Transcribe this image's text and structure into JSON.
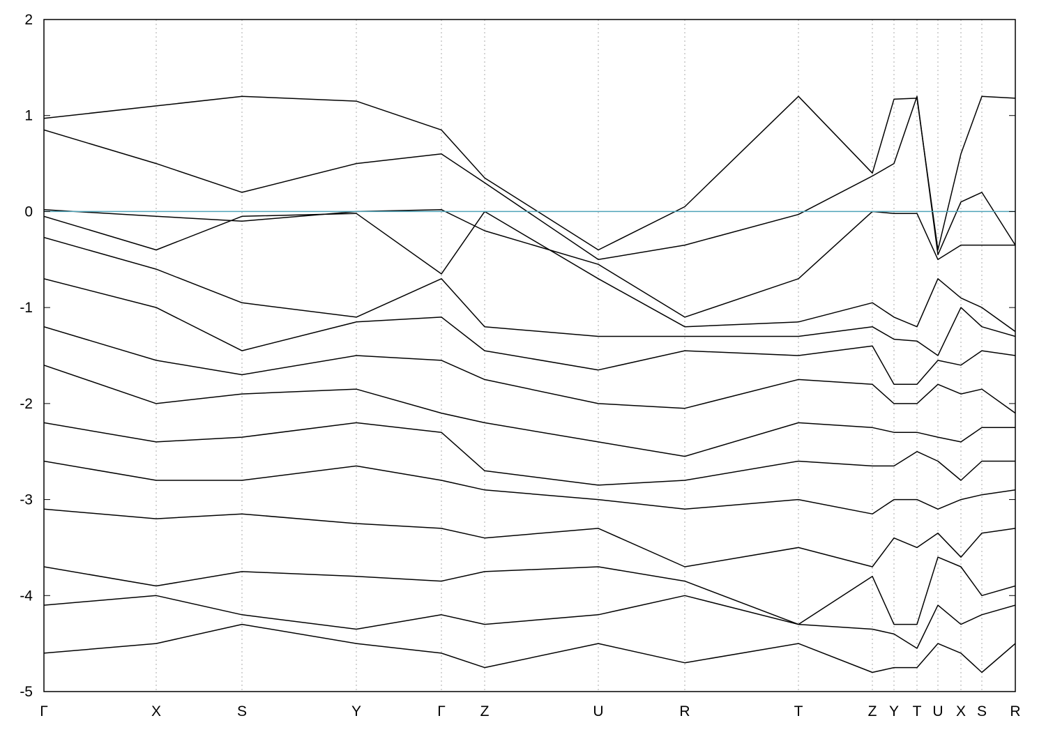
{
  "chart_data": {
    "type": "line",
    "x": [
      0,
      161,
      284,
      448,
      570,
      632,
      795,
      919,
      1082,
      1188,
      1219,
      1252,
      1282,
      1315,
      1345,
      1393
    ],
    "xlim": [
      0,
      1393
    ],
    "xticks": [
      {
        "value": 0,
        "label": "Γ"
      },
      {
        "value": 161,
        "label": "X"
      },
      {
        "value": 284,
        "label": "S"
      },
      {
        "value": 448,
        "label": "Y"
      },
      {
        "value": 570,
        "label": "Γ"
      },
      {
        "value": 632,
        "label": "Z"
      },
      {
        "value": 795,
        "label": "U"
      },
      {
        "value": 919,
        "label": "R"
      },
      {
        "value": 1082,
        "label": "T"
      },
      {
        "value": 1188,
        "label": "Z"
      },
      {
        "value": 1219,
        "label": "Y"
      },
      {
        "value": 1252,
        "label": "T"
      },
      {
        "value": 1282,
        "label": "U"
      },
      {
        "value": 1315,
        "label": "X"
      },
      {
        "value": 1345,
        "label": "S"
      },
      {
        "value": 1393,
        "label": "R"
      }
    ],
    "ylim": [
      -5,
      2
    ],
    "yticks": [
      -5,
      -4,
      -3,
      -2,
      -1,
      0,
      1,
      2
    ],
    "grid": true,
    "color": "#000000",
    "fermi_level": {
      "value": 0,
      "color": "#4fa3b8"
    },
    "series": [
      {
        "values": [
          0.97,
          1.1,
          1.2,
          1.15,
          0.85,
          0.35,
          -0.4,
          0.05,
          1.2,
          0.4,
          1.17,
          1.18,
          -0.4,
          0.6,
          1.2,
          1.18
        ]
      },
      {
        "values": [
          0.85,
          0.5,
          0.2,
          0.5,
          0.6,
          0.3,
          -0.5,
          -0.35,
          -0.03,
          0.37,
          0.5,
          1.2,
          -0.45,
          0.1,
          0.2,
          -0.35
        ]
      },
      {
        "values": [
          0.02,
          -0.05,
          -0.1,
          0.0,
          0.02,
          -0.2,
          -0.55,
          -1.1,
          -0.7,
          0.0,
          -0.02,
          -0.02,
          -0.5,
          -0.35,
          -0.35,
          -0.35
        ]
      },
      {
        "values": [
          -0.05,
          -0.4,
          -0.05,
          -0.02,
          -0.65,
          0.0,
          -0.7,
          -1.2,
          -1.15,
          -0.95,
          -1.1,
          -1.2,
          -0.7,
          -0.9,
          -1.0,
          -1.25
        ]
      },
      {
        "values": [
          -0.27,
          -0.6,
          -0.95,
          -1.1,
          -0.7,
          -1.2,
          -1.3,
          -1.3,
          -1.3,
          -1.2,
          -1.33,
          -1.35,
          -1.5,
          -1.0,
          -1.2,
          -1.3
        ]
      },
      {
        "values": [
          -0.7,
          -1.0,
          -1.45,
          -1.15,
          -1.1,
          -1.45,
          -1.65,
          -1.45,
          -1.5,
          -1.4,
          -1.8,
          -1.8,
          -1.55,
          -1.6,
          -1.45,
          -1.5
        ]
      },
      {
        "values": [
          -1.2,
          -1.55,
          -1.7,
          -1.5,
          -1.55,
          -1.75,
          -2.0,
          -2.05,
          -1.75,
          -1.8,
          -2.0,
          -2.0,
          -1.8,
          -1.9,
          -1.85,
          -2.1
        ]
      },
      {
        "values": [
          -1.6,
          -2.0,
          -1.9,
          -1.85,
          -2.1,
          -2.2,
          -2.4,
          -2.55,
          -2.2,
          -2.25,
          -2.3,
          -2.3,
          -2.35,
          -2.4,
          -2.25,
          -2.25
        ]
      },
      {
        "values": [
          -2.2,
          -2.4,
          -2.35,
          -2.2,
          -2.3,
          -2.7,
          -2.85,
          -2.8,
          -2.6,
          -2.65,
          -2.65,
          -2.5,
          -2.6,
          -2.8,
          -2.6,
          -2.6
        ]
      },
      {
        "values": [
          -2.6,
          -2.8,
          -2.8,
          -2.65,
          -2.8,
          -2.9,
          -3.0,
          -3.1,
          -3.0,
          -3.15,
          -3.0,
          -3.0,
          -3.1,
          -3.0,
          -2.95,
          -2.9
        ]
      },
      {
        "values": [
          -3.1,
          -3.2,
          -3.15,
          -3.25,
          -3.3,
          -3.4,
          -3.3,
          -3.7,
          -3.5,
          -3.7,
          -3.4,
          -3.5,
          -3.35,
          -3.6,
          -3.35,
          -3.3
        ]
      },
      {
        "values": [
          -3.7,
          -3.9,
          -3.75,
          -3.8,
          -3.85,
          -3.75,
          -3.7,
          -3.85,
          -4.3,
          -3.8,
          -4.3,
          -4.3,
          -3.6,
          -3.7,
          -4.0,
          -3.9
        ]
      },
      {
        "values": [
          -4.1,
          -4.0,
          -4.2,
          -4.35,
          -4.2,
          -4.3,
          -4.2,
          -4.0,
          -4.3,
          -4.35,
          -4.4,
          -4.55,
          -4.1,
          -4.3,
          -4.2,
          -4.1
        ]
      },
      {
        "values": [
          -4.6,
          -4.5,
          -4.3,
          -4.5,
          -4.6,
          -4.75,
          -4.5,
          -4.7,
          -4.5,
          -4.8,
          -4.75,
          -4.75,
          -4.5,
          -4.6,
          -4.8,
          -4.5
        ]
      }
    ]
  }
}
